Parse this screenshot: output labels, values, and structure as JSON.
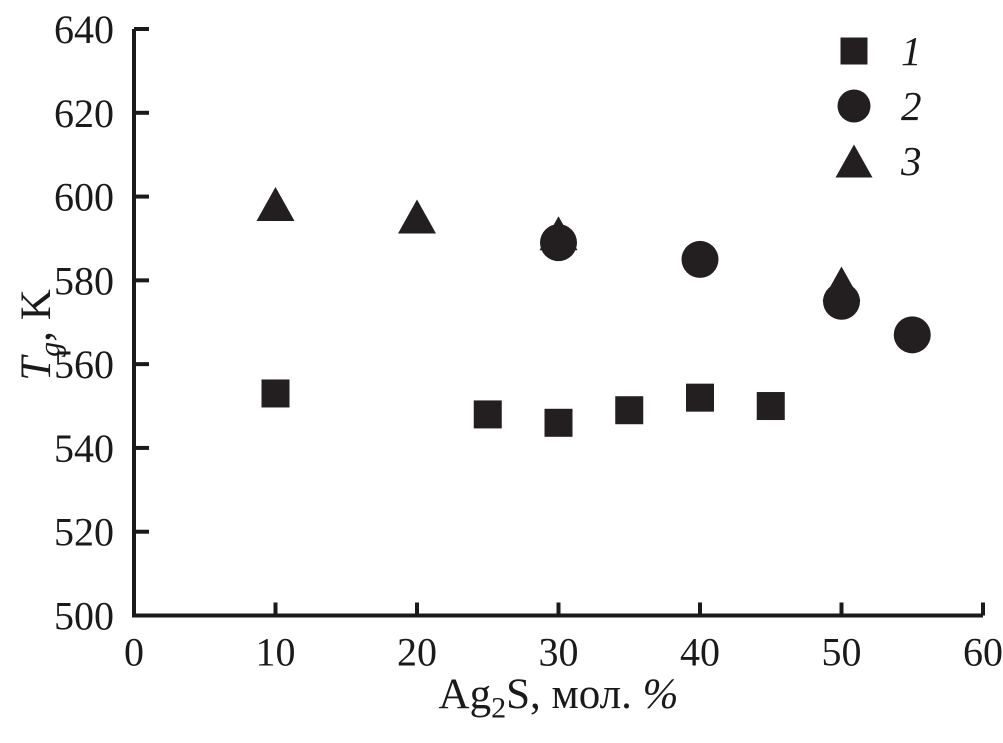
{
  "chart_data": {
    "type": "scatter",
    "title": "",
    "xlabel": "Ag2S, мол. %",
    "ylabel": "Tg, K",
    "xlim": [
      0,
      60
    ],
    "ylim": [
      500,
      640
    ],
    "xticks": [
      0,
      10,
      20,
      30,
      40,
      50,
      60
    ],
    "yticks": [
      500,
      520,
      540,
      560,
      580,
      600,
      620,
      640
    ],
    "grid": false,
    "legend_position": "top-right",
    "ink_color": "#1a1a1a",
    "marker_color": "#231f20",
    "series": [
      {
        "name": "1",
        "marker": "square",
        "points": [
          [
            10,
            553
          ],
          [
            25,
            548
          ],
          [
            30,
            546
          ],
          [
            35,
            549
          ],
          [
            40,
            552
          ],
          [
            45,
            550
          ]
        ]
      },
      {
        "name": "2",
        "marker": "circle",
        "points": [
          [
            30,
            589
          ],
          [
            40,
            585
          ],
          [
            50,
            575
          ],
          [
            55,
            567
          ]
        ]
      },
      {
        "name": "3",
        "marker": "triangle",
        "points": [
          [
            10,
            598
          ],
          [
            20,
            595
          ],
          [
            30,
            591
          ],
          [
            50,
            579
          ]
        ]
      }
    ]
  },
  "labels": {
    "y_T": "T",
    "y_sub": "g",
    "y_rest": ", K",
    "x_pre": "Ag",
    "x_sub": "2",
    "x_mid": "S, мол. ",
    "x_pct": "%"
  }
}
